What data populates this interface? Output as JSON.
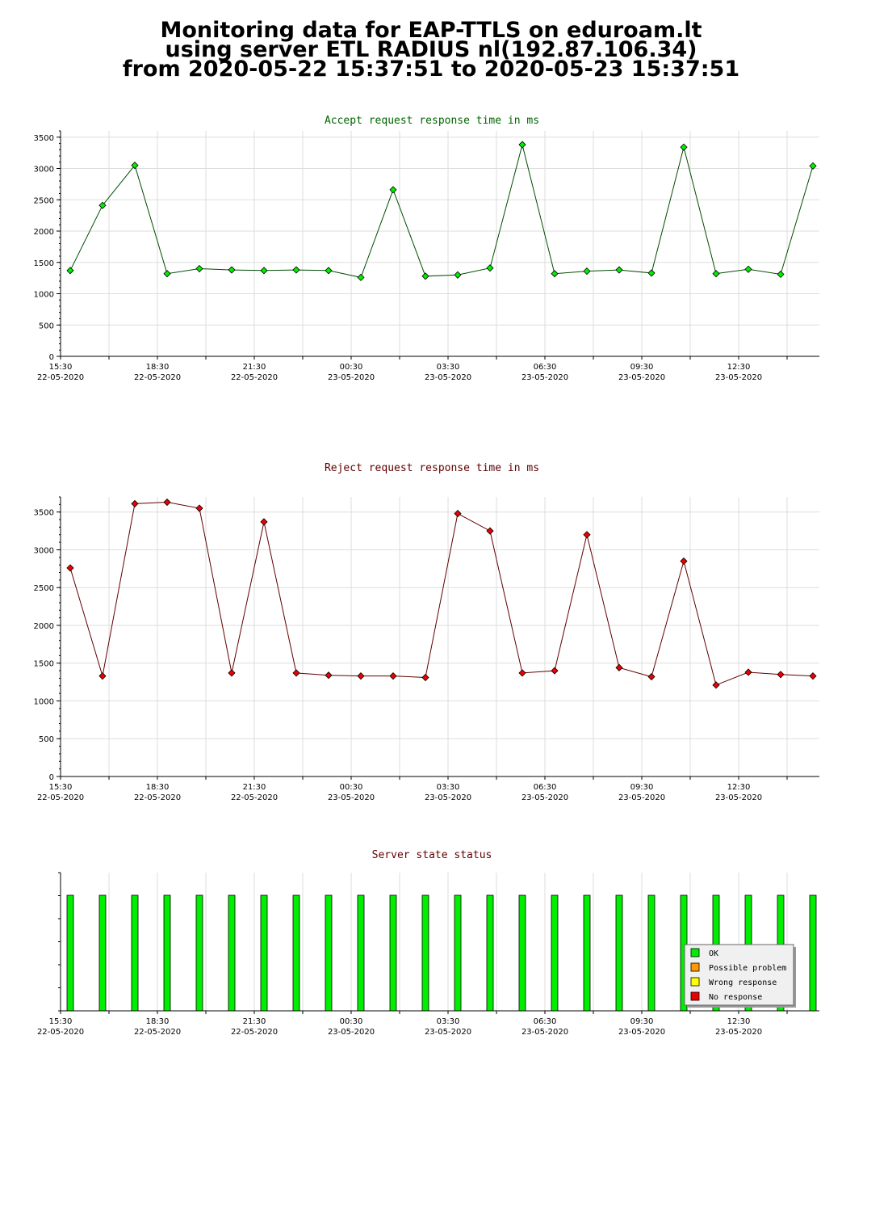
{
  "header": {
    "line1": "Monitoring data for EAP-TTLS on eduroam.lt",
    "line2": "using server ETL RADIUS nl(192.87.106.34)",
    "line3": "from 2020-05-22 15:37:51 to 2020-05-23 15:37:51"
  },
  "x_ticks": [
    {
      "time": "15:30",
      "date": "22-05-2020"
    },
    {
      "time": "18:30",
      "date": "22-05-2020"
    },
    {
      "time": "21:30",
      "date": "22-05-2020"
    },
    {
      "time": "00:30",
      "date": "23-05-2020"
    },
    {
      "time": "03:30",
      "date": "23-05-2020"
    },
    {
      "time": "06:30",
      "date": "23-05-2020"
    },
    {
      "time": "09:30",
      "date": "23-05-2020"
    },
    {
      "time": "12:30",
      "date": "23-05-2020"
    }
  ],
  "chart_data": [
    {
      "type": "line",
      "title": "Accept request response time in ms",
      "title_color": "#006400",
      "line_color": "#004d00",
      "marker_color": "#00ee00",
      "ylim": [
        0,
        3600
      ],
      "y_ticks": [
        0,
        500,
        1000,
        1500,
        2000,
        2500,
        3000,
        3500
      ],
      "x_range_hours": [
        0,
        23.5
      ],
      "x_hours": [
        0.3,
        1.3,
        2.3,
        3.3,
        4.3,
        5.3,
        6.3,
        7.3,
        8.3,
        9.3,
        10.3,
        11.3,
        12.3,
        13.3,
        14.3,
        15.3,
        16.3,
        17.3,
        18.3,
        19.3,
        20.3,
        21.3,
        22.3,
        23.3
      ],
      "values": [
        1370,
        2410,
        3050,
        1320,
        1400,
        1380,
        1370,
        1380,
        1370,
        1260,
        2660,
        1280,
        1300,
        1410,
        3380,
        1320,
        1360,
        1380,
        1330,
        3340,
        1320,
        1390,
        1310,
        3040
      ],
      "grid": true
    },
    {
      "type": "line",
      "title": "Reject request response time in ms",
      "title_color": "#600000",
      "line_color": "#600000",
      "marker_color": "#ee0000",
      "ylim": [
        0,
        3700
      ],
      "y_ticks": [
        0,
        500,
        1000,
        1500,
        2000,
        2500,
        3000,
        3500
      ],
      "x_range_hours": [
        0,
        23.5
      ],
      "x_hours": [
        0.3,
        1.3,
        2.3,
        3.3,
        4.3,
        5.3,
        6.3,
        7.3,
        8.3,
        9.3,
        10.3,
        11.3,
        12.3,
        13.3,
        14.3,
        15.3,
        16.3,
        17.3,
        18.3,
        19.3,
        20.3,
        21.3,
        22.3,
        23.3
      ],
      "values": [
        2760,
        1330,
        3610,
        3630,
        3550,
        1370,
        3370,
        1370,
        1340,
        1330,
        1330,
        1310,
        3480,
        3250,
        1370,
        1400,
        3200,
        1440,
        1320,
        2850,
        1210,
        1380,
        1350,
        1330
      ],
      "grid": true
    },
    {
      "type": "bar",
      "title": "Server state status",
      "title_color": "#600000",
      "x_range_hours": [
        0,
        23.5
      ],
      "x_hours": [
        0.3,
        1.3,
        2.3,
        3.3,
        4.3,
        5.3,
        6.3,
        7.3,
        8.3,
        9.3,
        10.3,
        11.3,
        12.3,
        13.3,
        14.3,
        15.3,
        16.3,
        17.3,
        18.3,
        19.3,
        20.3,
        21.3,
        22.3,
        23.3
      ],
      "values": [
        "OK",
        "OK",
        "OK",
        "OK",
        "OK",
        "OK",
        "OK",
        "OK",
        "OK",
        "OK",
        "OK",
        "OK",
        "OK",
        "OK",
        "OK",
        "OK",
        "OK",
        "OK",
        "OK",
        "OK",
        "OK",
        "OK",
        "OK",
        "OK"
      ],
      "legend": [
        {
          "label": "OK",
          "color": "#00ee00"
        },
        {
          "label": "Possible problem",
          "color": "#ff9900"
        },
        {
          "label": "Wrong response",
          "color": "#ffff00"
        },
        {
          "label": "No response",
          "color": "#ee0000"
        }
      ],
      "legend_position": "bottom-right"
    }
  ]
}
